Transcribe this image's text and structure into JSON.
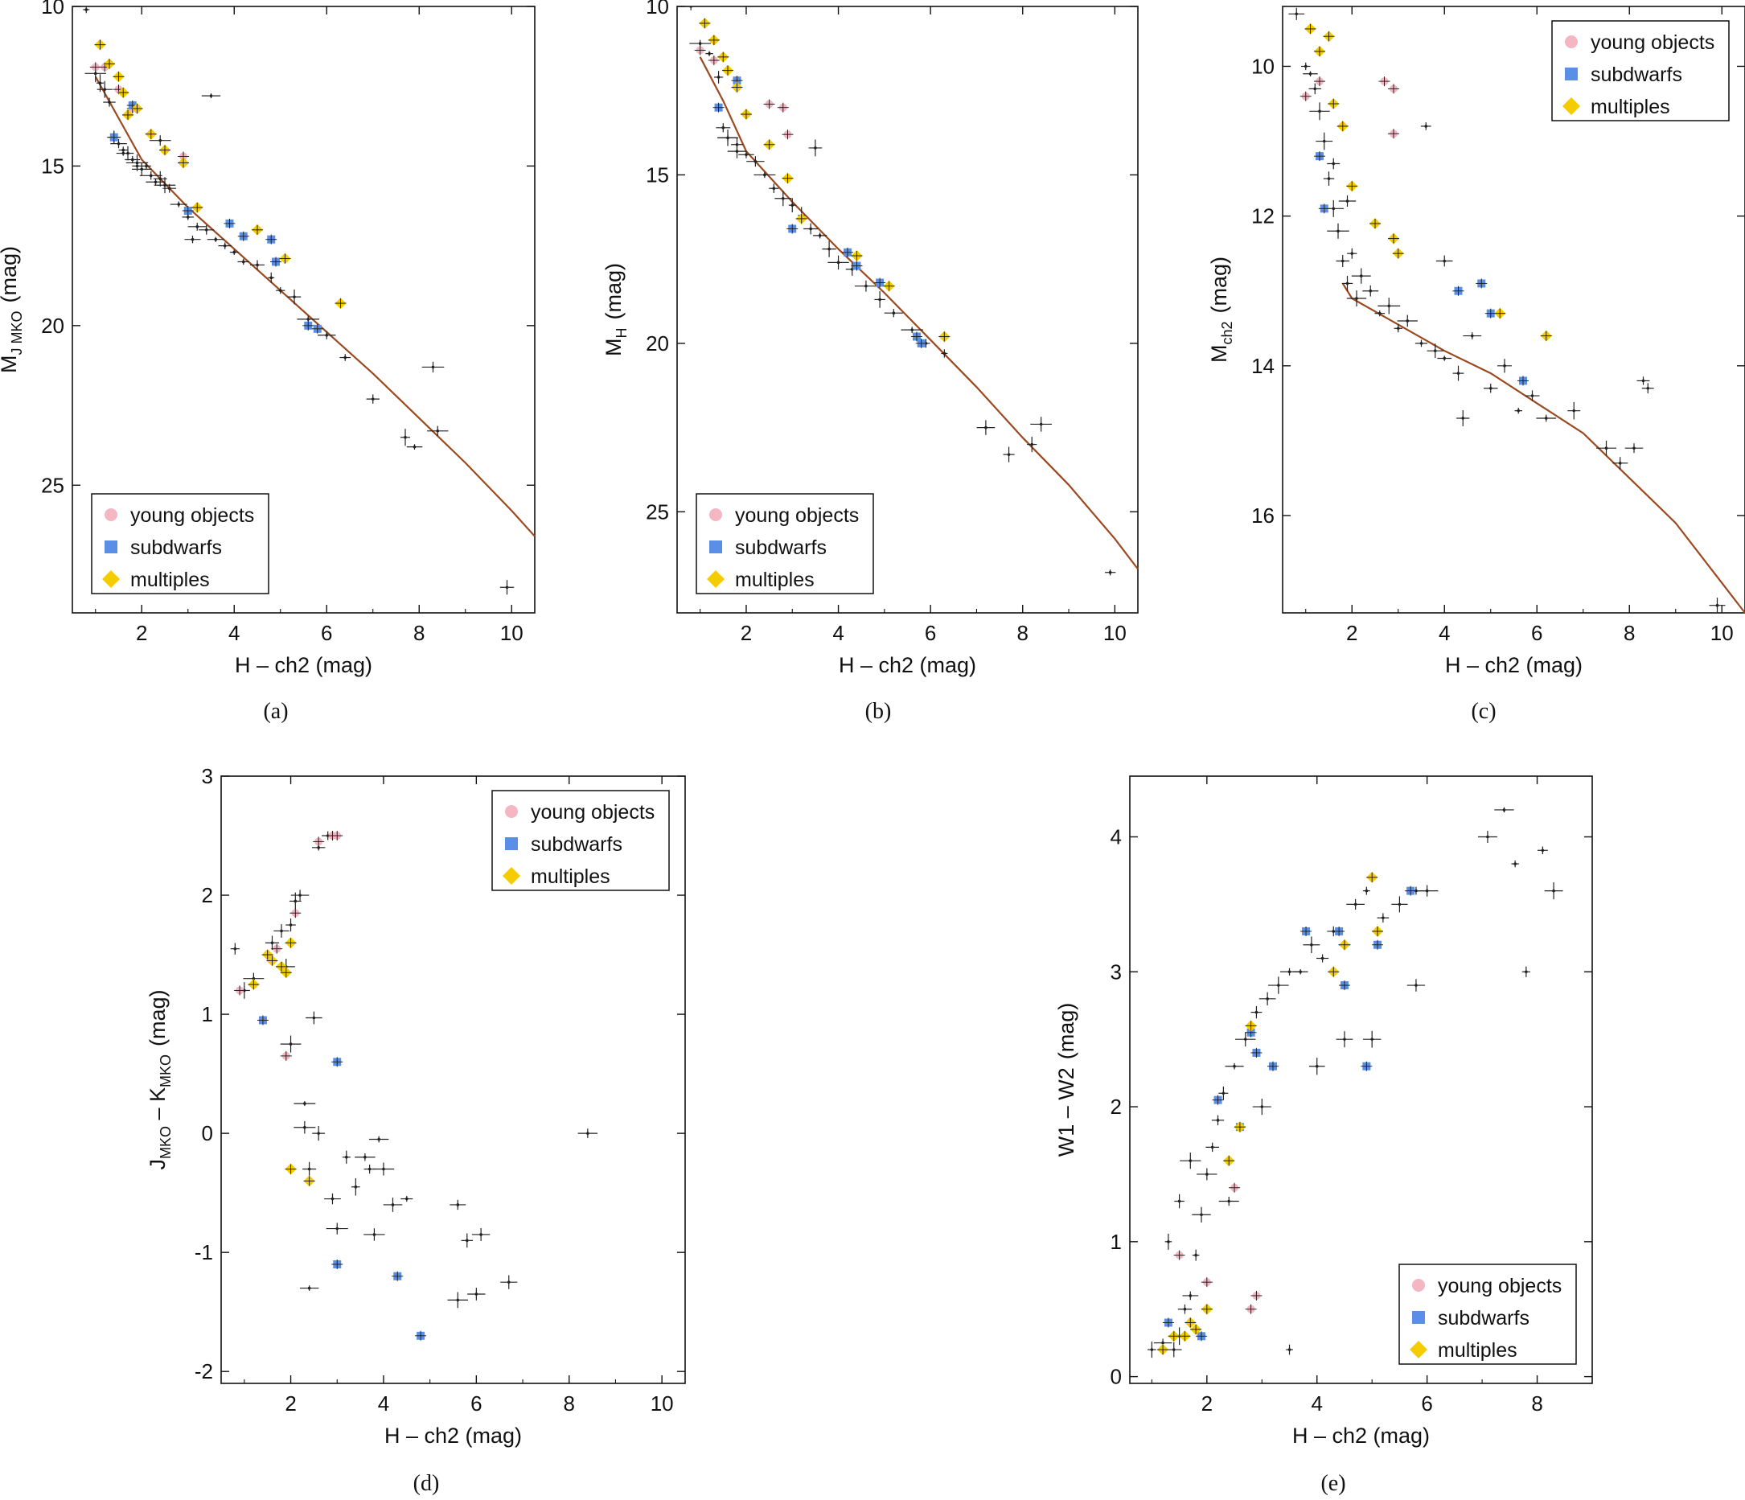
{
  "figure": {
    "colors": {
      "young": "#f4b6c2",
      "subdwarf": "#5b8fe6",
      "multiple": "#f5cc00",
      "fit": "#9b4a1f",
      "points": "#222222"
    }
  },
  "chart_data": [
    {
      "id": "a",
      "type": "scatter",
      "caption": "(a)",
      "xlabel": "H – ch2 (mag)",
      "ylabel": {
        "main": "M",
        "sub": "J MKO",
        "unit": "(mag)"
      },
      "xlim": [
        0.5,
        10.5
      ],
      "ylim": [
        10,
        29
      ],
      "y_inverted": true,
      "xticks": [
        2,
        4,
        6,
        8,
        10
      ],
      "yticks": [
        10,
        15,
        20,
        25
      ],
      "legend": {
        "position": "bottom-left",
        "entries": [
          "young objects",
          "subdwarfs",
          "multiples"
        ]
      },
      "fit": {
        "x": [
          1.0,
          1.5,
          2.0,
          3.0,
          4.0,
          5.0,
          6.0,
          7.0,
          8.0,
          9.0,
          10.0,
          10.5
        ],
        "y": [
          12.2,
          13.5,
          14.8,
          16.3,
          17.6,
          18.9,
          20.2,
          21.5,
          22.9,
          24.3,
          25.8,
          26.6
        ]
      },
      "series": {
        "field": {
          "x": [
            0.8,
            1.0,
            1.1,
            1.2,
            1.3,
            1.4,
            1.5,
            1.6,
            1.7,
            1.8,
            1.9,
            2.0,
            2.1,
            2.2,
            2.3,
            2.4,
            2.5,
            2.6,
            2.8,
            3.0,
            3.2,
            3.4,
            3.6,
            3.8,
            4.0,
            4.2,
            4.5,
            4.8,
            5.0,
            5.3,
            5.6,
            6.0,
            6.4,
            7.0,
            7.7,
            7.9,
            8.3,
            8.4,
            9.9,
            3.5,
            3.1,
            2.4,
            1.6,
            1.9
          ],
          "y": [
            10.1,
            12.1,
            12.4,
            12.6,
            13.0,
            14.1,
            14.3,
            14.5,
            14.6,
            14.8,
            14.9,
            15.1,
            15.0,
            15.3,
            15.5,
            15.4,
            15.6,
            15.7,
            16.2,
            16.6,
            16.9,
            17.0,
            17.3,
            17.5,
            17.7,
            18.0,
            18.1,
            18.5,
            18.9,
            19.1,
            19.8,
            20.3,
            21.0,
            22.3,
            23.5,
            23.8,
            21.3,
            23.3,
            28.2,
            12.8,
            17.3,
            14.2,
            14.6,
            15.0
          ]
        },
        "young": {
          "x": [
            1.0,
            1.2,
            1.5,
            1.8,
            2.9
          ],
          "y": [
            11.9,
            11.9,
            12.6,
            13.2,
            14.7
          ]
        },
        "subdwarfs": {
          "x": [
            1.4,
            1.8,
            3.0,
            3.9,
            4.2,
            4.8,
            4.9,
            5.6,
            5.8
          ],
          "y": [
            14.1,
            13.1,
            16.4,
            16.8,
            17.2,
            17.3,
            18.0,
            20.0,
            20.1
          ]
        },
        "multiples": {
          "x": [
            1.1,
            1.3,
            1.5,
            1.6,
            1.7,
            1.9,
            2.2,
            2.5,
            2.9,
            3.2,
            4.5,
            5.1,
            6.3
          ],
          "y": [
            11.2,
            11.8,
            12.2,
            12.7,
            13.4,
            13.2,
            14.0,
            14.5,
            14.9,
            16.3,
            17.0,
            17.9,
            19.3
          ]
        }
      }
    },
    {
      "id": "b",
      "type": "scatter",
      "caption": "(b)",
      "xlabel": "H – ch2 (mag)",
      "ylabel": {
        "main": "M",
        "sub": "H",
        "unit": "(mag)"
      },
      "xlim": [
        0.5,
        10.5
      ],
      "ylim": [
        10,
        28
      ],
      "y_inverted": true,
      "xticks": [
        2,
        4,
        6,
        8,
        10
      ],
      "yticks": [
        10,
        15,
        20,
        25
      ],
      "legend": {
        "position": "bottom-left",
        "entries": [
          "young objects",
          "subdwarfs",
          "multiples"
        ]
      },
      "fit": {
        "x": [
          1.0,
          1.5,
          2.0,
          3.0,
          4.0,
          5.0,
          6.0,
          7.0,
          8.0,
          9.0,
          10.0,
          10.5
        ],
        "y": [
          11.5,
          12.8,
          14.3,
          15.8,
          17.2,
          18.5,
          19.9,
          21.3,
          22.8,
          24.2,
          25.8,
          26.7
        ]
      },
      "series": {
        "field": {
          "x": [
            0.8,
            1.0,
            1.2,
            1.4,
            1.5,
            1.6,
            1.8,
            2.0,
            2.2,
            2.4,
            2.6,
            2.8,
            3.0,
            3.2,
            3.4,
            3.6,
            3.8,
            4.0,
            4.3,
            4.6,
            4.9,
            5.2,
            5.6,
            5.9,
            6.3,
            7.2,
            7.7,
            8.2,
            8.4,
            9.9,
            3.5,
            1.6,
            1.8
          ],
          "y": [
            10.0,
            11.1,
            11.4,
            12.1,
            13.6,
            13.9,
            14.1,
            14.4,
            14.6,
            15.0,
            15.4,
            15.7,
            15.9,
            16.2,
            16.6,
            16.8,
            17.2,
            17.6,
            17.8,
            18.3,
            18.7,
            19.1,
            19.6,
            20.0,
            20.3,
            22.5,
            23.3,
            23.0,
            22.4,
            26.8,
            14.2,
            13.9,
            14.3
          ]
        },
        "young": {
          "x": [
            1.0,
            1.3,
            2.5,
            2.8,
            2.9
          ],
          "y": [
            11.3,
            11.6,
            12.9,
            13.0,
            13.8
          ]
        },
        "subdwarfs": {
          "x": [
            1.4,
            1.8,
            3.0,
            4.2,
            4.4,
            4.9,
            5.7,
            5.8
          ],
          "y": [
            13.0,
            12.2,
            16.6,
            17.3,
            17.7,
            18.2,
            19.8,
            20.0
          ]
        },
        "multiples": {
          "x": [
            1.1,
            1.3,
            1.5,
            1.6,
            1.8,
            2.0,
            2.5,
            2.9,
            3.2,
            4.4,
            5.1,
            6.3
          ],
          "y": [
            10.5,
            11.0,
            11.5,
            11.9,
            12.4,
            13.2,
            14.1,
            15.1,
            16.3,
            17.4,
            18.3,
            19.8
          ]
        }
      }
    },
    {
      "id": "c",
      "type": "scatter",
      "caption": "(c)",
      "xlabel": "H – ch2 (mag)",
      "ylabel": {
        "main": "M",
        "sub": "ch2",
        "unit": "(mag)"
      },
      "xlim": [
        0.5,
        10.5
      ],
      "ylim": [
        9.2,
        17.3
      ],
      "y_inverted": true,
      "xticks": [
        2,
        4,
        6,
        8,
        10
      ],
      "yticks": [
        10,
        12,
        14,
        16
      ],
      "legend": {
        "position": "top-right",
        "entries": [
          "young objects",
          "subdwarfs",
          "multiples"
        ]
      },
      "fit": {
        "x": [
          1.8,
          2.0,
          3.0,
          4.0,
          5.0,
          6.0,
          7.0,
          8.0,
          9.0,
          10.0,
          10.5
        ],
        "y": [
          12.9,
          13.1,
          13.45,
          13.8,
          14.1,
          14.5,
          14.9,
          15.5,
          16.1,
          16.9,
          17.3
        ]
      },
      "series": {
        "field": {
          "x": [
            0.8,
            1.0,
            1.1,
            1.2,
            1.3,
            1.4,
            1.5,
            1.6,
            1.7,
            1.8,
            1.9,
            2.0,
            2.1,
            2.2,
            2.4,
            2.6,
            2.8,
            3.0,
            3.2,
            3.5,
            3.8,
            4.0,
            4.3,
            4.6,
            5.0,
            5.3,
            5.6,
            5.9,
            6.2,
            6.8,
            7.5,
            7.8,
            8.1,
            8.3,
            8.4,
            9.9,
            3.6,
            4.4,
            4.0,
            1.6,
            1.9
          ],
          "y": [
            9.3,
            10.0,
            10.1,
            10.3,
            10.6,
            11.0,
            11.5,
            11.9,
            12.2,
            12.6,
            12.9,
            12.5,
            13.1,
            12.8,
            13.0,
            13.3,
            13.2,
            13.5,
            13.4,
            13.7,
            13.8,
            13.9,
            14.1,
            13.6,
            14.3,
            14.0,
            14.6,
            14.4,
            14.7,
            14.6,
            15.1,
            15.3,
            15.1,
            14.2,
            14.3,
            17.2,
            10.8,
            14.7,
            12.6,
            11.3,
            11.8
          ]
        },
        "young": {
          "x": [
            1.0,
            1.3,
            2.7,
            2.9,
            2.9
          ],
          "y": [
            10.4,
            10.2,
            10.2,
            10.9,
            10.3
          ]
        },
        "subdwarfs": {
          "x": [
            1.3,
            1.4,
            4.3,
            4.8,
            5.0,
            5.7
          ],
          "y": [
            11.2,
            11.9,
            13.0,
            12.9,
            13.3,
            14.2
          ]
        },
        "multiples": {
          "x": [
            1.1,
            1.3,
            1.5,
            1.6,
            1.8,
            2.0,
            2.5,
            2.9,
            3.0,
            5.2,
            6.2
          ],
          "y": [
            9.5,
            9.8,
            9.6,
            10.5,
            10.8,
            11.6,
            12.1,
            12.3,
            12.5,
            13.3,
            13.6
          ]
        }
      }
    },
    {
      "id": "d",
      "type": "scatter",
      "caption": "(d)",
      "xlabel": "H – ch2 (mag)",
      "ylabel": {
        "main": "J",
        "sub": "MKO",
        "mid": " – K",
        "sub2": "MKO",
        "unit": "(mag)"
      },
      "xlim": [
        0.5,
        10.5
      ],
      "ylim": [
        -2.1,
        3.0
      ],
      "y_inverted": false,
      "xticks": [
        2,
        4,
        6,
        8,
        10
      ],
      "yticks": [
        -2,
        -1,
        0,
        1,
        2,
        3
      ],
      "legend": {
        "position": "top-right",
        "entries": [
          "young objects",
          "subdwarfs",
          "multiples"
        ]
      },
      "series": {
        "field": {
          "x": [
            0.8,
            1.0,
            1.2,
            1.6,
            1.8,
            1.9,
            2.0,
            2.1,
            2.2,
            2.3,
            2.4,
            2.5,
            2.6,
            2.8,
            2.9,
            3.0,
            3.2,
            3.4,
            3.6,
            3.8,
            3.9,
            4.0,
            4.2,
            4.5,
            5.6,
            5.8,
            6.0,
            6.1,
            6.7,
            8.4,
            2.0,
            2.6,
            2.4,
            5.6,
            3.7,
            2.3
          ],
          "y": [
            1.55,
            1.2,
            1.3,
            1.6,
            1.7,
            1.4,
            1.75,
            1.95,
            2.0,
            0.25,
            -0.3,
            0.97,
            2.4,
            2.5,
            -0.55,
            -0.8,
            -0.2,
            -0.45,
            -0.2,
            -0.85,
            -0.05,
            -0.3,
            -0.6,
            -0.55,
            -0.6,
            -0.9,
            -1.35,
            -0.85,
            -1.25,
            0.0,
            0.75,
            0.0,
            -1.3,
            -1.4,
            -0.3,
            0.05
          ]
        },
        "young": {
          "x": [
            0.9,
            1.7,
            2.1,
            2.6,
            2.9,
            3.0,
            1.9
          ],
          "y": [
            1.2,
            1.55,
            1.85,
            2.45,
            2.5,
            2.5,
            0.65
          ]
        },
        "subdwarfs": {
          "x": [
            1.4,
            3.0,
            3.0,
            4.3,
            4.8
          ],
          "y": [
            0.95,
            0.6,
            -1.1,
            -1.2,
            -1.7
          ]
        },
        "multiples": {
          "x": [
            1.2,
            1.5,
            1.6,
            1.8,
            1.9,
            2.0,
            2.0,
            2.4
          ],
          "y": [
            1.25,
            1.5,
            1.45,
            1.4,
            1.35,
            1.6,
            -0.3,
            -0.4
          ]
        }
      }
    },
    {
      "id": "e",
      "type": "scatter",
      "caption": "(e)",
      "xlabel": "H – ch2 (mag)",
      "ylabel": {
        "main": "W1 – W2",
        "unit": "(mag)"
      },
      "xlim": [
        0.6,
        9.0
      ],
      "ylim": [
        -0.05,
        4.45
      ],
      "y_inverted": false,
      "xticks": [
        2,
        4,
        6,
        8
      ],
      "yticks": [
        0,
        1,
        2,
        3,
        4
      ],
      "legend": {
        "position": "bottom-right",
        "entries": [
          "young objects",
          "subdwarfs",
          "multiples"
        ]
      },
      "series": {
        "field": {
          "x": [
            1.0,
            1.2,
            1.4,
            1.5,
            1.6,
            1.7,
            1.8,
            1.9,
            2.0,
            2.1,
            2.2,
            2.3,
            2.5,
            2.7,
            2.9,
            3.1,
            3.3,
            3.5,
            3.7,
            3.9,
            4.1,
            4.3,
            4.5,
            4.7,
            4.9,
            5.2,
            5.5,
            5.8,
            6.0,
            7.1,
            7.4,
            7.6,
            7.8,
            8.1,
            8.3,
            3.5,
            4.0,
            4.5,
            5.0,
            5.8,
            1.5,
            1.7,
            1.3,
            2.4,
            3.0
          ],
          "y": [
            0.2,
            0.25,
            0.2,
            0.3,
            0.5,
            0.6,
            0.9,
            1.2,
            1.5,
            1.7,
            1.9,
            2.1,
            2.3,
            2.5,
            2.7,
            2.8,
            2.9,
            3.0,
            3.0,
            3.2,
            3.1,
            3.3,
            3.2,
            3.5,
            3.6,
            3.4,
            3.5,
            3.6,
            3.6,
            4.0,
            4.2,
            3.8,
            3.0,
            3.9,
            3.6,
            0.2,
            2.3,
            2.5,
            2.5,
            2.9,
            1.3,
            1.6,
            1.0,
            1.3,
            2.0
          ]
        },
        "young": {
          "x": [
            1.5,
            2.8,
            2.9,
            2.5,
            2.0
          ],
          "y": [
            0.9,
            0.5,
            0.6,
            1.4,
            0.7
          ]
        },
        "subdwarfs": {
          "x": [
            1.3,
            1.9,
            2.2,
            2.6,
            2.8,
            2.9,
            3.2,
            3.8,
            4.4,
            4.5,
            5.1,
            5.7,
            4.9
          ],
          "y": [
            0.4,
            0.3,
            2.05,
            1.85,
            2.55,
            2.4,
            2.3,
            3.3,
            3.3,
            2.9,
            3.2,
            3.6,
            2.3
          ]
        },
        "multiples": {
          "x": [
            1.2,
            1.4,
            1.6,
            1.7,
            1.8,
            2.0,
            2.4,
            2.6,
            2.8,
            4.3,
            4.5,
            5.0,
            5.1
          ],
          "y": [
            0.2,
            0.3,
            0.3,
            0.4,
            0.35,
            0.5,
            1.6,
            1.85,
            2.6,
            3.0,
            3.2,
            3.7,
            3.3
          ]
        }
      }
    }
  ]
}
